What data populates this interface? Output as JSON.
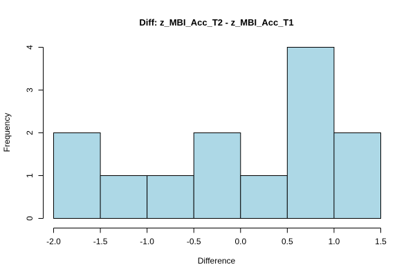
{
  "chart_data": {
    "type": "bar",
    "subtype": "histogram",
    "title": "Diff: z_MBI_Acc_T2 - z_MBI_Acc_T1",
    "xlabel": "Difference",
    "ylabel": "Frequency",
    "bins": [
      {
        "start": -2.0,
        "end": -1.5,
        "count": 2
      },
      {
        "start": -1.5,
        "end": -1.0,
        "count": 1
      },
      {
        "start": -1.0,
        "end": -0.5,
        "count": 1
      },
      {
        "start": -0.5,
        "end": 0.0,
        "count": 2
      },
      {
        "start": 0.0,
        "end": 0.5,
        "count": 1
      },
      {
        "start": 0.5,
        "end": 1.0,
        "count": 4
      },
      {
        "start": 1.0,
        "end": 1.5,
        "count": 2
      }
    ],
    "x_ticks": [
      "-2.0",
      "-1.5",
      "-1.0",
      "-0.5",
      "0.0",
      "0.5",
      "1.0",
      "1.5"
    ],
    "x_tick_values": [
      -2.0,
      -1.5,
      -1.0,
      -0.5,
      0.0,
      0.5,
      1.0,
      1.5
    ],
    "y_ticks": [
      "0",
      "1",
      "2",
      "3",
      "4"
    ],
    "y_tick_values": [
      0,
      1,
      2,
      3,
      4
    ],
    "xlim": [
      -2.0,
      1.5
    ],
    "ylim": [
      0,
      4
    ],
    "grid": false,
    "legend": "none",
    "bar_fill": "#add8e6",
    "bar_stroke": "#000000"
  }
}
